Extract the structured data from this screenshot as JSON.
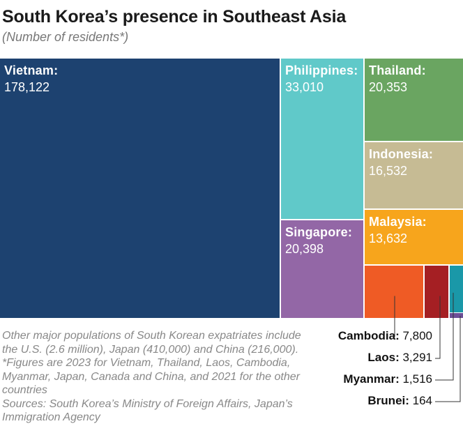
{
  "chart_data": {
    "type": "treemap",
    "title": "South Korea’s presence in Southeast Asia",
    "subtitle": "(Number of residents*)",
    "items": [
      {
        "name": "Vietnam",
        "value": 178122,
        "value_label": "178,122",
        "color": "#1d4270",
        "label_inside": true
      },
      {
        "name": "Philippines",
        "value": 33010,
        "value_label": "33,010",
        "color": "#60c9c9",
        "label_inside": true
      },
      {
        "name": "Singapore",
        "value": 20398,
        "value_label": "20,398",
        "color": "#9367a6",
        "label_inside": true
      },
      {
        "name": "Thailand",
        "value": 20353,
        "value_label": "20,353",
        "color": "#6aa561",
        "label_inside": true
      },
      {
        "name": "Indonesia",
        "value": 16532,
        "value_label": "16,532",
        "color": "#c6bb94",
        "label_inside": true
      },
      {
        "name": "Malaysia",
        "value": 13632,
        "value_label": "13,632",
        "color": "#f7a51c",
        "label_inside": true
      },
      {
        "name": "Cambodia",
        "value": 7800,
        "value_label": "7,800",
        "color": "#ef5b25",
        "label_inside": false
      },
      {
        "name": "Laos",
        "value": 3291,
        "value_label": "3,291",
        "color": "#a51f23",
        "label_inside": false
      },
      {
        "name": "Myanmar",
        "value": 1516,
        "value_label": "1,516",
        "color": "#1a98a8",
        "label_inside": false
      },
      {
        "name": "Brunei",
        "value": 164,
        "value_label": "164",
        "color": "#6d4f97",
        "label_inside": false
      }
    ]
  },
  "note": {
    "text": "Other major populations of South Korean expatriates include the U.S. (2.6 million), Japan (410,000) and China (216,000). *Figures are 2023 for Vietnam, Thailand, Laos, Cambodia, Myanmar, Japan, Canada and China, and 2021 for the other countries",
    "sources": "Sources: South Korea’s Ministry of Foreign Affairs, Japan’s Immigration Agency"
  }
}
